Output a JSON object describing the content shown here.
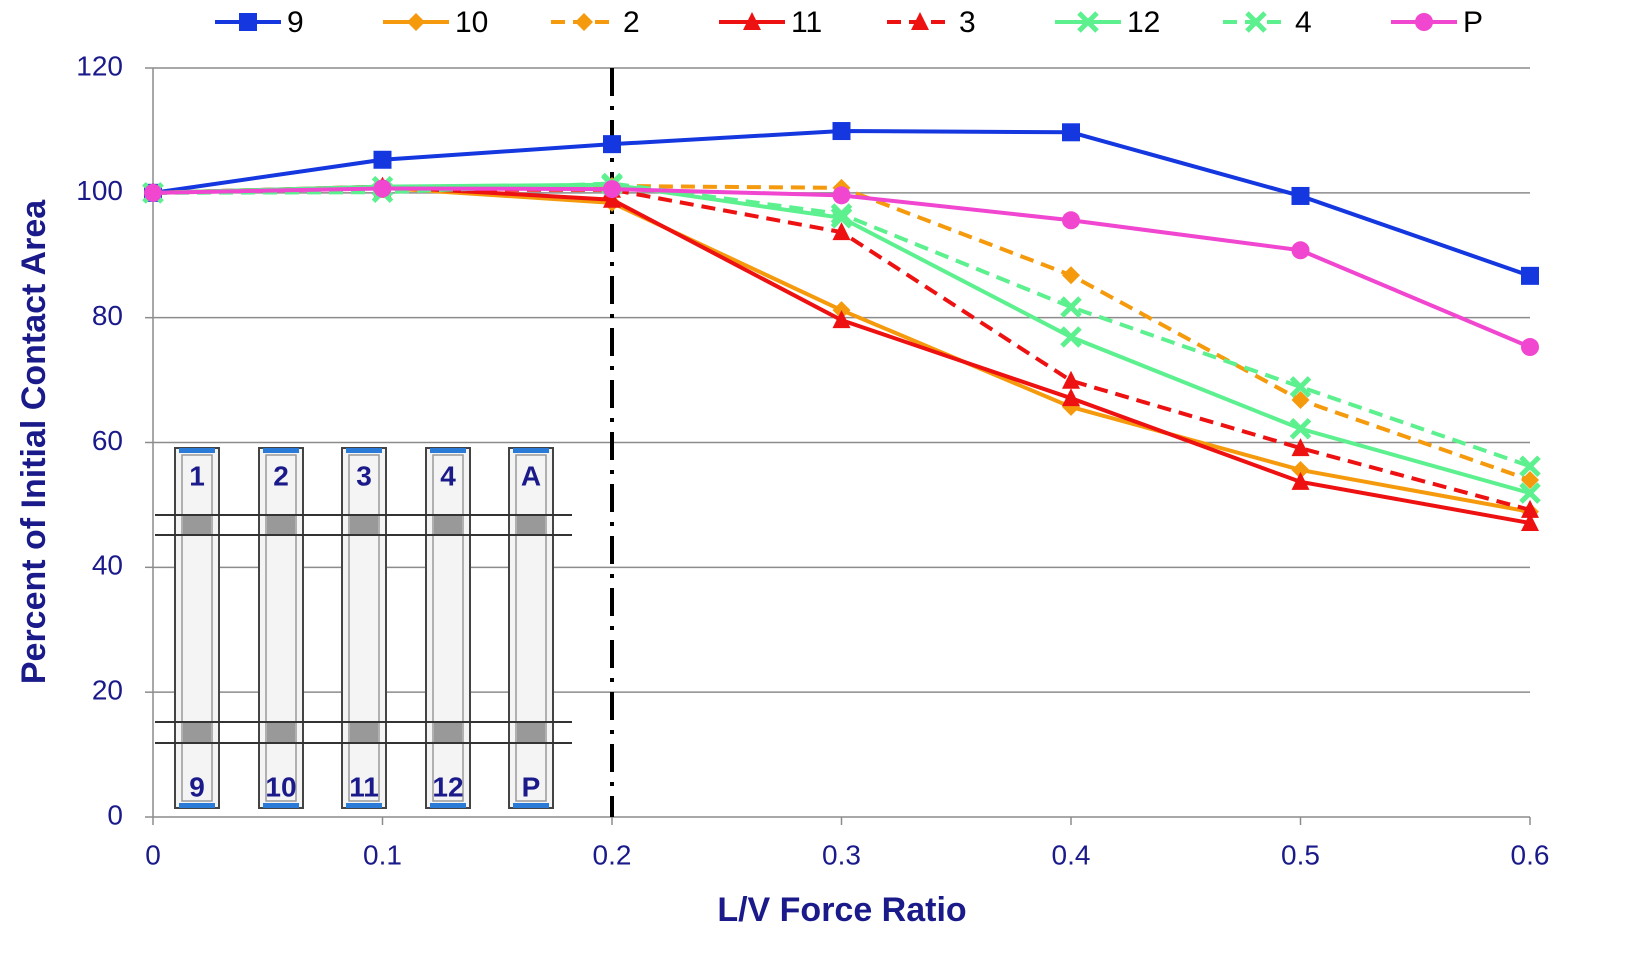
{
  "chart_data": {
    "type": "line",
    "x_label": "L/V Force Ratio",
    "y_label": "Percent of Initial Contact Area",
    "x": [
      0,
      0.1,
      0.2,
      0.3,
      0.4,
      0.5,
      0.6
    ],
    "xlim": [
      0,
      0.6
    ],
    "xticks": [
      0,
      0.1,
      0.2,
      0.3,
      0.4,
      0.5,
      0.6
    ],
    "ylim": [
      0,
      120
    ],
    "yticks": [
      0,
      20,
      40,
      60,
      80,
      100,
      120
    ],
    "grid": true,
    "legend": "top",
    "vline_x": 0.2,
    "series": [
      {
        "name": "9",
        "color": "#1437e0",
        "dashed": false,
        "marker": "square",
        "values": [
          100,
          105.3,
          107.8,
          109.9,
          109.7,
          99.5,
          86.7
        ]
      },
      {
        "name": "10",
        "color": "#f59a0c",
        "dashed": false,
        "marker": "diamond",
        "values": [
          100,
          100.8,
          98.4,
          81.2,
          65.7,
          55.6,
          48.9
        ]
      },
      {
        "name": "2",
        "color": "#f59a0c",
        "dashed": true,
        "marker": "diamond",
        "values": [
          100,
          101,
          101.1,
          100.8,
          86.8,
          66.8,
          54
        ]
      },
      {
        "name": "11",
        "color": "#ee1111",
        "dashed": false,
        "marker": "triangle",
        "values": [
          100,
          101,
          98.9,
          79.6,
          67.1,
          53.7,
          47.1
        ]
      },
      {
        "name": "3",
        "color": "#ee1111",
        "dashed": true,
        "marker": "triangle",
        "values": [
          100,
          100.5,
          100.5,
          93.7,
          69.9,
          59.1,
          49.2
        ]
      },
      {
        "name": "12",
        "color": "#5cf08f",
        "dashed": false,
        "marker": "x",
        "values": [
          100,
          101,
          101.3,
          96,
          76.9,
          62.2,
          51.9
        ]
      },
      {
        "name": "4",
        "color": "#5cf08f",
        "dashed": true,
        "marker": "x",
        "values": [
          100,
          100.1,
          101.5,
          96.6,
          81.7,
          68.9,
          56.2
        ]
      },
      {
        "name": "P",
        "color": "#f046d0",
        "dashed": false,
        "marker": "circle",
        "values": [
          100,
          100.7,
          100.6,
          99.6,
          95.6,
          90.8,
          75.3
        ]
      }
    ],
    "inset": {
      "top_labels": [
        "1",
        "2",
        "3",
        "4",
        "A"
      ],
      "bottom_labels": [
        "9",
        "10",
        "11",
        "12",
        "P"
      ]
    }
  }
}
